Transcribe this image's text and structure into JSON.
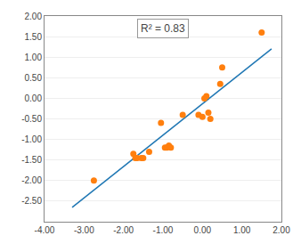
{
  "chart_data": {
    "type": "scatter",
    "annotations": [
      "R² = 0.83"
    ],
    "series": [
      {
        "type": "scatter",
        "marker": "circle",
        "x": [
          -2.75,
          -1.75,
          -1.7,
          -1.65,
          -1.55,
          -1.5,
          -1.35,
          -1.05,
          -0.95,
          -0.9,
          -0.85,
          -0.8,
          -0.5,
          -0.1,
          0.0,
          0.05,
          0.1,
          0.15,
          0.2,
          0.45,
          0.5,
          1.5
        ],
        "values": [
          -2.0,
          -1.35,
          -1.45,
          -1.45,
          -1.45,
          -1.45,
          -1.3,
          -0.6,
          -1.2,
          -1.2,
          -1.15,
          -1.2,
          -0.4,
          -0.4,
          -0.45,
          0.0,
          0.05,
          -0.35,
          -0.5,
          0.35,
          0.75,
          1.6
        ]
      },
      {
        "type": "line",
        "line_style": "solid",
        "x": [
          -3.3,
          1.75
        ],
        "values": [
          -2.65,
          1.2
        ]
      }
    ],
    "xlim": [
      -4.0,
      2.0
    ],
    "ylim": [
      -3.0,
      2.0
    ],
    "xticks": [
      {
        "value": -4.0,
        "label": "-4.00"
      },
      {
        "value": -3.0,
        "label": "-3.00"
      },
      {
        "value": -2.0,
        "label": "-2.00"
      },
      {
        "value": -1.0,
        "label": "-1.00"
      },
      {
        "value": 0.0,
        "label": "0.00"
      },
      {
        "value": 1.0,
        "label": "1.00"
      },
      {
        "value": 2.0,
        "label": "2.00"
      }
    ],
    "yticks": [
      {
        "value": -2.5,
        "label": "-2.50"
      },
      {
        "value": -2.0,
        "label": "-2.00"
      },
      {
        "value": -1.5,
        "label": "-1.50"
      },
      {
        "value": -1.0,
        "label": "-1.00"
      },
      {
        "value": -0.5,
        "label": "-0.50"
      },
      {
        "value": 0.0,
        "label": "0.00"
      },
      {
        "value": 0.5,
        "label": "0.50"
      },
      {
        "value": 1.0,
        "label": "1.00"
      },
      {
        "value": 1.5,
        "label": "1.50"
      },
      {
        "value": 2.0,
        "label": "2.00"
      }
    ],
    "grid": "y"
  }
}
